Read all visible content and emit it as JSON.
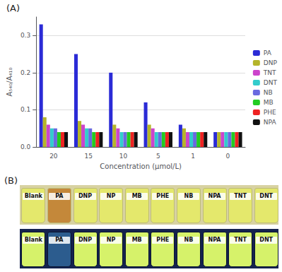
{
  "chart_data": {
    "type": "bar",
    "title": "(A)",
    "xlabel": "Concentration (μmol/L)",
    "ylabel": "A₅₄₀/A₄₁₀",
    "categories": [
      20,
      15,
      10,
      5,
      1,
      0
    ],
    "series": [
      {
        "name": "PA",
        "color": "#2b2bd6",
        "values": [
          0.33,
          0.25,
          0.2,
          0.12,
          0.06,
          0.04
        ]
      },
      {
        "name": "DNP",
        "color": "#b5b52a",
        "values": [
          0.08,
          0.07,
          0.06,
          0.06,
          0.05,
          0.04
        ]
      },
      {
        "name": "TNT",
        "color": "#cc44cc",
        "values": [
          0.06,
          0.06,
          0.05,
          0.05,
          0.04,
          0.04
        ]
      },
      {
        "name": "DNT",
        "color": "#33cccc",
        "values": [
          0.05,
          0.05,
          0.04,
          0.04,
          0.04,
          0.04
        ]
      },
      {
        "name": "NB",
        "color": "#6a6ae0",
        "values": [
          0.05,
          0.05,
          0.04,
          0.04,
          0.04,
          0.04
        ]
      },
      {
        "name": "MB",
        "color": "#22cc22",
        "values": [
          0.04,
          0.04,
          0.04,
          0.04,
          0.04,
          0.04
        ]
      },
      {
        "name": "PHE",
        "color": "#ee2222",
        "values": [
          0.04,
          0.04,
          0.04,
          0.04,
          0.04,
          0.04
        ]
      },
      {
        "name": "NPA",
        "color": "#111111",
        "values": [
          0.04,
          0.04,
          0.04,
          0.04,
          0.04,
          0.04
        ]
      }
    ],
    "ylim": [
      0,
      0.35
    ],
    "yticks": [
      {
        "value": 0,
        "label": "0.0"
      },
      0.1,
      0.2,
      0.3
    ],
    "grid": true,
    "legend": "right",
    "data_labels": false
  },
  "photo": {
    "label": "(B)",
    "vials": [
      "Blank",
      "PA",
      "DNP",
      "NP",
      "MB",
      "PHE",
      "NB",
      "NPA",
      "TNT",
      "DNT"
    ]
  }
}
